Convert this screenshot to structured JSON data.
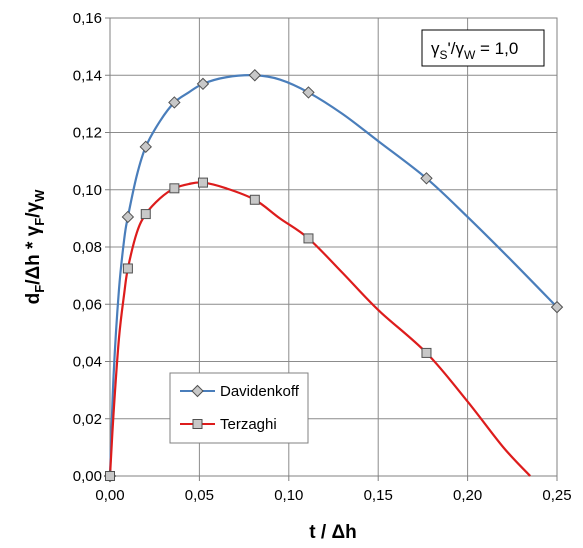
{
  "chart_data": {
    "type": "line",
    "xlabel": "t / Δh",
    "ylabel": "dF/Δh * γF/γW",
    "ylabel_parts": {
      "a": "d",
      "a_sub": "F",
      "b": "/Δh  * γ",
      "b_sub": "F",
      "c": "/γ",
      "c_sub": "W"
    },
    "xlim": [
      0,
      0.25
    ],
    "ylim": [
      0,
      0.16
    ],
    "x_ticks": [
      0,
      0.05,
      0.1,
      0.15,
      0.2,
      0.25
    ],
    "x_tick_labels": [
      "0,00",
      "0,05",
      "0,10",
      "0,15",
      "0,20",
      "0,25"
    ],
    "y_ticks": [
      0,
      0.02,
      0.04,
      0.06,
      0.08,
      0.1,
      0.12,
      0.14,
      0.16
    ],
    "y_tick_labels": [
      "0,00",
      "0,02",
      "0,04",
      "0,06",
      "0,08",
      "0,10",
      "0,12",
      "0,14",
      "0,16"
    ],
    "grid": true,
    "legend_position": "bottom-left",
    "annotation": {
      "text": "γS'/γW = 1,0",
      "g1": "γ",
      "s1": "S",
      "mid": "'/γ",
      "s2": "W",
      "tail": " = 1,0",
      "position": "top-right"
    },
    "series": [
      {
        "name": "Davidenkoff",
        "color": "#4a7ebb",
        "marker": "diamond",
        "points": [
          [
            0,
            0
          ],
          [
            0.01,
            0.0905
          ],
          [
            0.02,
            0.115
          ],
          [
            0.036,
            0.1305
          ],
          [
            0.052,
            0.137
          ],
          [
            0.081,
            0.14
          ],
          [
            0.111,
            0.134
          ],
          [
            0.177,
            0.104
          ],
          [
            0.25,
            0.059
          ]
        ],
        "curve": [
          [
            0,
            0
          ],
          [
            0.002,
            0.035
          ],
          [
            0.005,
            0.065
          ],
          [
            0.008,
            0.083
          ],
          [
            0.01,
            0.0905
          ],
          [
            0.015,
            0.105
          ],
          [
            0.02,
            0.115
          ],
          [
            0.028,
            0.124
          ],
          [
            0.036,
            0.1305
          ],
          [
            0.044,
            0.134
          ],
          [
            0.052,
            0.137
          ],
          [
            0.065,
            0.1393
          ],
          [
            0.081,
            0.14
          ],
          [
            0.095,
            0.1385
          ],
          [
            0.111,
            0.134
          ],
          [
            0.13,
            0.1265
          ],
          [
            0.15,
            0.117
          ],
          [
            0.177,
            0.104
          ],
          [
            0.2,
            0.0905
          ],
          [
            0.225,
            0.075
          ],
          [
            0.25,
            0.059
          ]
        ]
      },
      {
        "name": "Terzaghi",
        "color": "#dd1c1c",
        "marker": "square",
        "points": [
          [
            0,
            0
          ],
          [
            0.01,
            0.0725
          ],
          [
            0.02,
            0.0915
          ],
          [
            0.036,
            0.1005
          ],
          [
            0.052,
            0.1025
          ],
          [
            0.081,
            0.0965
          ],
          [
            0.111,
            0.083
          ],
          [
            0.177,
            0.043
          ]
        ],
        "curve": [
          [
            0,
            0
          ],
          [
            0.002,
            0.022
          ],
          [
            0.005,
            0.048
          ],
          [
            0.008,
            0.064
          ],
          [
            0.01,
            0.0725
          ],
          [
            0.015,
            0.085
          ],
          [
            0.02,
            0.0915
          ],
          [
            0.028,
            0.097
          ],
          [
            0.036,
            0.1005
          ],
          [
            0.044,
            0.102
          ],
          [
            0.052,
            0.1025
          ],
          [
            0.065,
            0.1005
          ],
          [
            0.081,
            0.0965
          ],
          [
            0.095,
            0.09
          ],
          [
            0.111,
            0.083
          ],
          [
            0.13,
            0.071
          ],
          [
            0.15,
            0.058
          ],
          [
            0.177,
            0.043
          ],
          [
            0.2,
            0.026
          ],
          [
            0.22,
            0.01
          ],
          [
            0.235,
            0.0
          ]
        ]
      }
    ]
  }
}
